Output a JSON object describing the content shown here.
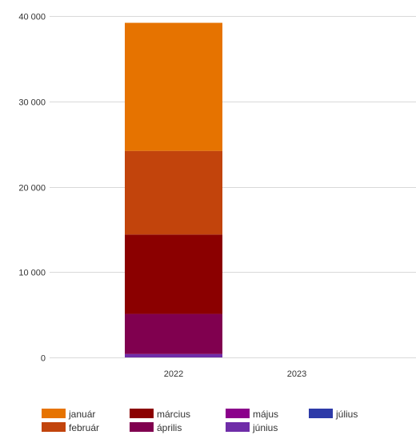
{
  "chart_data": {
    "type": "bar",
    "stacked": true,
    "title": "",
    "xlabel": "",
    "ylabel": "",
    "ylim": [
      0,
      40000
    ],
    "y_ticks": [
      0,
      10000,
      20000,
      30000,
      40000
    ],
    "y_tick_labels": [
      "0",
      "10 000",
      "20 000",
      "30 000",
      "40 000"
    ],
    "categories": [
      "2022",
      "2023"
    ],
    "grid": true,
    "legend_position": "bottom",
    "series": [
      {
        "name": "június",
        "color": "#6f2da8",
        "values": [
          400,
          0
        ]
      },
      {
        "name": "április",
        "color": "#80004f",
        "values": [
          4700,
          0
        ]
      },
      {
        "name": "március",
        "color": "#8b0000",
        "values": [
          9300,
          0
        ]
      },
      {
        "name": "február",
        "color": "#c2440c",
        "values": [
          9800,
          0
        ]
      },
      {
        "name": "január",
        "color": "#e67300",
        "values": [
          15000,
          0
        ]
      },
      {
        "name": "május",
        "color": "#8b008b",
        "values": [
          0,
          0
        ]
      },
      {
        "name": "július",
        "color": "#2d3aa8",
        "values": [
          0,
          0
        ]
      }
    ],
    "legend": [
      {
        "label": "január",
        "color": "#e67300"
      },
      {
        "label": "február",
        "color": "#c2440c"
      },
      {
        "label": "március",
        "color": "#8b0000"
      },
      {
        "label": "április",
        "color": "#80004f"
      },
      {
        "label": "május",
        "color": "#8b008b"
      },
      {
        "label": "június",
        "color": "#6f2da8"
      },
      {
        "label": "július",
        "color": "#2d3aa8"
      }
    ]
  }
}
